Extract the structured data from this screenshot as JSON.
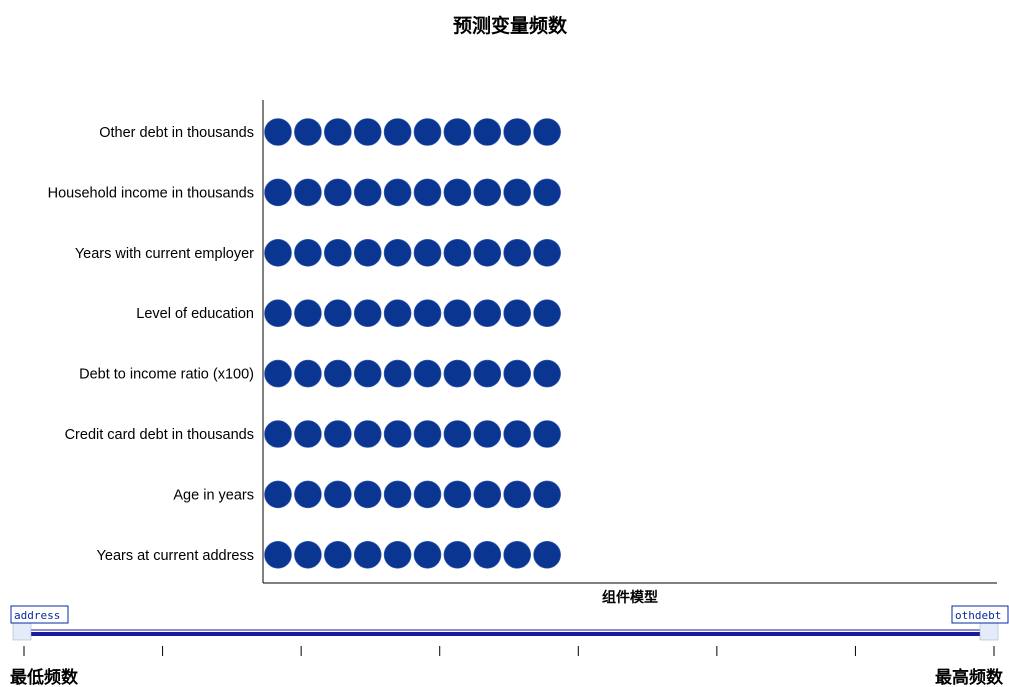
{
  "chart_data": {
    "type": "scatter",
    "title": "预测变量频数",
    "xlabel": "组件模型",
    "ylabel": "",
    "categories": [
      "Other debt in thousands",
      "Household income in thousands",
      "Years with current employer",
      "Level of education",
      "Debt to income ratio (x100)",
      "Credit card debt in thousands",
      "Age in years",
      "Years at current address"
    ],
    "values": [
      10,
      10,
      10,
      10,
      10,
      10,
      10,
      10
    ],
    "marker_color": "#0a3590",
    "grid": false,
    "legend": "none"
  },
  "slider": {
    "left_handle_label": "address",
    "right_handle_label": "othdebt",
    "left_label": "最低频数",
    "right_label": "最高频数",
    "tick_count": 8,
    "track_color": "#1a1aa0",
    "handle_color": "#0a2a9e"
  }
}
